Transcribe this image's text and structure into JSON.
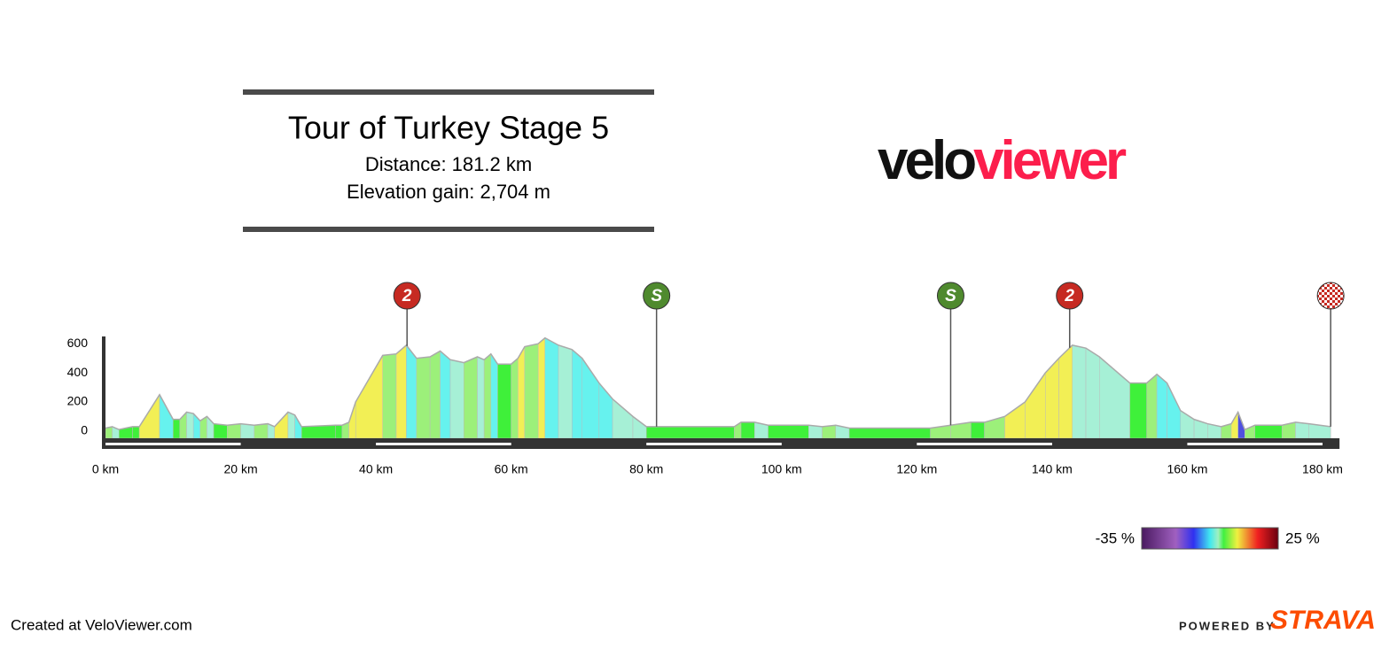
{
  "header": {
    "title": "Tour of Turkey Stage 5",
    "distance": "Distance: 181.2 km",
    "elevation_gain": "Elevation gain: 2,704 m"
  },
  "logo": {
    "part1": "velo",
    "part2": "viewer",
    "color1": "#111111",
    "color2": "#fc1e4c"
  },
  "footer": {
    "created": "Created at VeloViewer.com",
    "powered": "POWERED BY",
    "brand": "STRAVA",
    "brand_color": "#fc4c02"
  },
  "chart_data": {
    "type": "area",
    "x": [
      0,
      1,
      2,
      4,
      5,
      8,
      10,
      11,
      12,
      13,
      14,
      15,
      16,
      18,
      20,
      22,
      24,
      25,
      27,
      28,
      29,
      34,
      35,
      36,
      37,
      41,
      43,
      44.5,
      46,
      48,
      49.5,
      51,
      53,
      55,
      56,
      57,
      58,
      60,
      61,
      62,
      64,
      65,
      67,
      69,
      70.5,
      73,
      75,
      78,
      80,
      93,
      94,
      96,
      98,
      104,
      106,
      108,
      110,
      122,
      125,
      128,
      130,
      133,
      136,
      139,
      141,
      143,
      145,
      147,
      151.5,
      154,
      155.5,
      157,
      159,
      161,
      163,
      165,
      166.5,
      167.5,
      168.5,
      170,
      174,
      176,
      178,
      181.2
    ],
    "values": [
      20,
      30,
      10,
      30,
      30,
      250,
      80,
      80,
      130,
      120,
      70,
      100,
      50,
      40,
      50,
      40,
      50,
      30,
      130,
      110,
      30,
      40,
      40,
      60,
      200,
      520,
      530,
      590,
      500,
      510,
      550,
      490,
      470,
      510,
      490,
      530,
      460,
      460,
      500,
      580,
      600,
      640,
      590,
      560,
      500,
      330,
      220,
      100,
      30,
      30,
      60,
      60,
      40,
      40,
      30,
      40,
      20,
      20,
      40,
      60,
      60,
      100,
      200,
      400,
      500,
      590,
      570,
      510,
      330,
      330,
      390,
      330,
      140,
      80,
      50,
      30,
      50,
      130,
      10,
      40,
      40,
      60,
      50,
      30
    ],
    "segment_colors": [
      "#9cf07a",
      "#a6f0d6",
      "#3ff03a",
      "#3ff03a",
      "#f2ef55",
      "#66f2ee",
      "#3ff03a",
      "#9cf07a",
      "#a6f0d6",
      "#66f2ee",
      "#9cf07a",
      "#a6f0d6",
      "#3ff03a",
      "#9cf07a",
      "#a6f0d6",
      "#9cf07a",
      "#a6f0d6",
      "#f2ef55",
      "#a6f0d6",
      "#66f2ee",
      "#3ff03a",
      "#3ff03a",
      "#9cf07a",
      "#f2ef55",
      "#f2ef55",
      "#9cf07a",
      "#f2ef55",
      "#66f2ee",
      "#9cf07a",
      "#9cf07a",
      "#66f2ee",
      "#a6f0d6",
      "#9cf07a",
      "#a6f0d6",
      "#9cf07a",
      "#66f2ee",
      "#3ff03a",
      "#9cf07a",
      "#f2ef55",
      "#9cf07a",
      "#f2ef55",
      "#66f2ee",
      "#a6f0d6",
      "#66f2ee",
      "#66f2ee",
      "#66f2ee",
      "#a6f0d6",
      "#a6f0d6",
      "#3ff03a",
      "#9cf07a",
      "#3ff03a",
      "#a6f0d6",
      "#3ff03a",
      "#a6f0d6",
      "#9cf07a",
      "#a6f0d6",
      "#3ff03a",
      "#9cf07a",
      "#9cf07a",
      "#3ff03a",
      "#9cf07a",
      "#f2ef55",
      "#f2ef55",
      "#f2ef55",
      "#f2ef55",
      "#a6f0d6",
      "#a6f0d6",
      "#a6f0d6",
      "#3ff03a",
      "#9cf07a",
      "#66f2ee",
      "#66f2ee",
      "#a6f0d6",
      "#a6f0d6",
      "#a6f0d6",
      "#9cf07a",
      "#f2ef55",
      "#5050e0",
      "#9cf07a",
      "#3ff03a",
      "#9cf07a",
      "#a6f0d6",
      "#a6f0d6",
      null
    ],
    "xlim": [
      0,
      181.2
    ],
    "ylim": [
      -50,
      650
    ],
    "xticks": [
      {
        "value": 0,
        "label": "0 km"
      },
      {
        "value": 20,
        "label": "20 km"
      },
      {
        "value": 40,
        "label": "40 km"
      },
      {
        "value": 60,
        "label": "60 km"
      },
      {
        "value": 80,
        "label": "80 km"
      },
      {
        "value": 100,
        "label": "100 km"
      },
      {
        "value": 120,
        "label": "120 km"
      },
      {
        "value": 140,
        "label": "140 km"
      },
      {
        "value": 160,
        "label": "160 km"
      },
      {
        "value": 180,
        "label": "180 km"
      }
    ],
    "yticks": [
      0,
      200,
      400,
      600
    ],
    "markers": [
      {
        "km": 44.6,
        "label": "2",
        "color": "#c62a22"
      },
      {
        "km": 81.5,
        "label": "S",
        "color": "#4f8a2e"
      },
      {
        "km": 125,
        "label": "S",
        "color": "#4f8a2e"
      },
      {
        "km": 142.6,
        "label": "2",
        "color": "#c62a22"
      },
      {
        "km": 181.2,
        "type": "finish",
        "color": "#c62a22"
      }
    ],
    "gradient_scale": [
      {
        "value": -35,
        "label": "-35 %"
      },
      {
        "value": 25,
        "label": "25 %"
      }
    ]
  }
}
